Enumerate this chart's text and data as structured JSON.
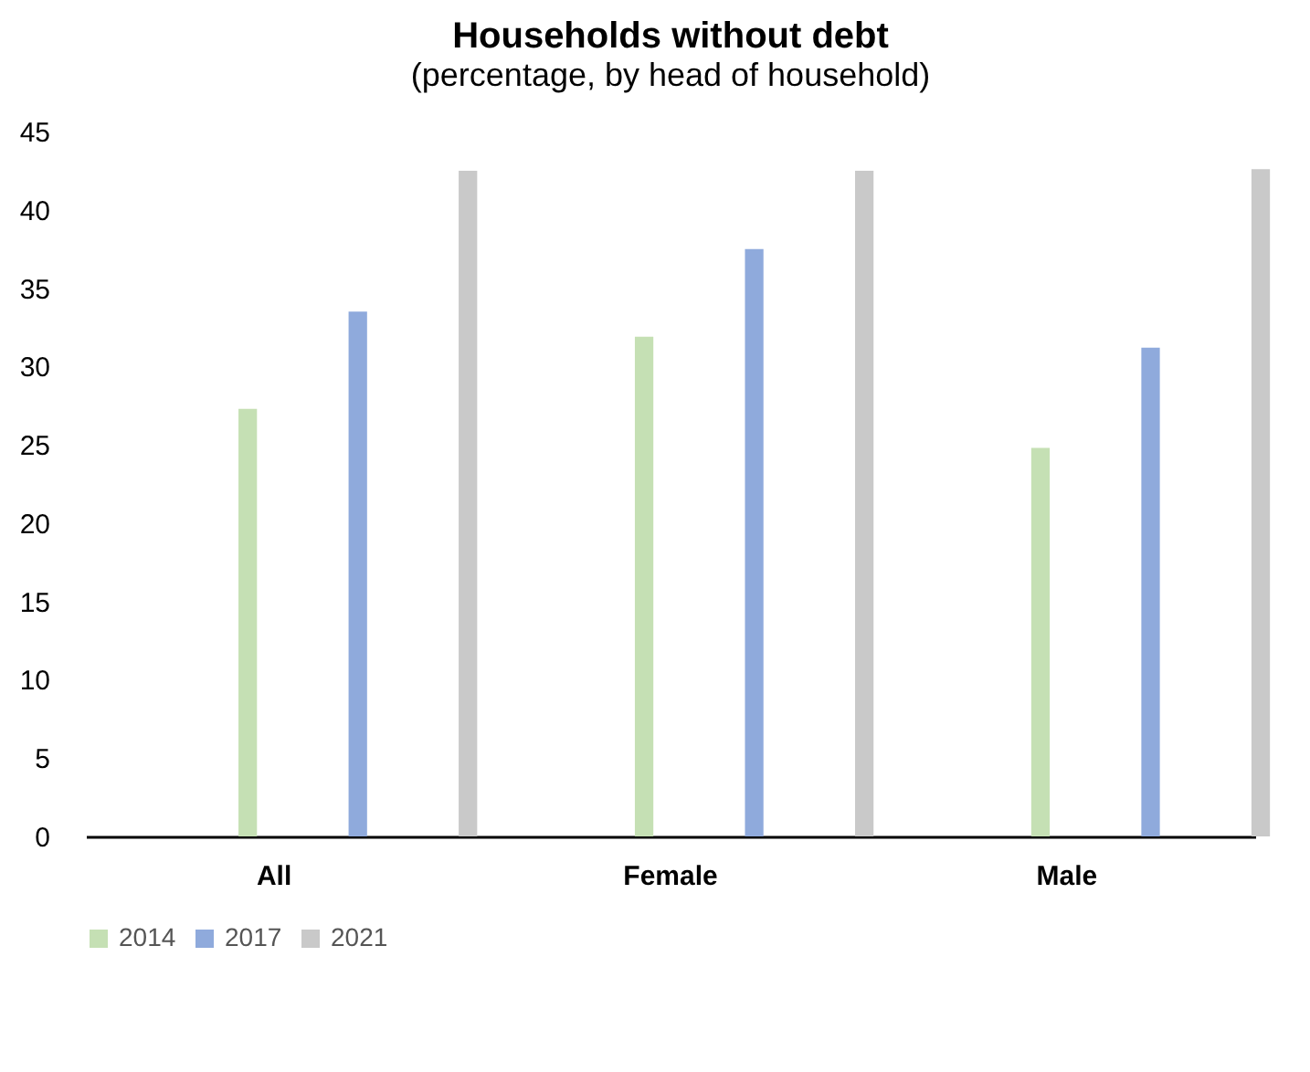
{
  "chart_data": {
    "type": "bar",
    "title": "Households without debt",
    "subtitle": "(percentage, by head of household)",
    "categories": [
      "All",
      "Female",
      "Male"
    ],
    "series": [
      {
        "name": "2014",
        "color": "#c5e0b4",
        "values": [
          27.3,
          31.9,
          24.8
        ]
      },
      {
        "name": "2017",
        "color": "#8faadc",
        "values": [
          33.5,
          37.5,
          31.2
        ]
      },
      {
        "name": "2021",
        "color": "#c9c9c9",
        "values": [
          42.5,
          42.5,
          42.6
        ]
      }
    ],
    "ylim": [
      0,
      45
    ],
    "yticks": [
      0,
      5,
      10,
      15,
      20,
      25,
      30,
      35,
      40,
      45
    ],
    "grid": false,
    "legend": "bottom"
  }
}
